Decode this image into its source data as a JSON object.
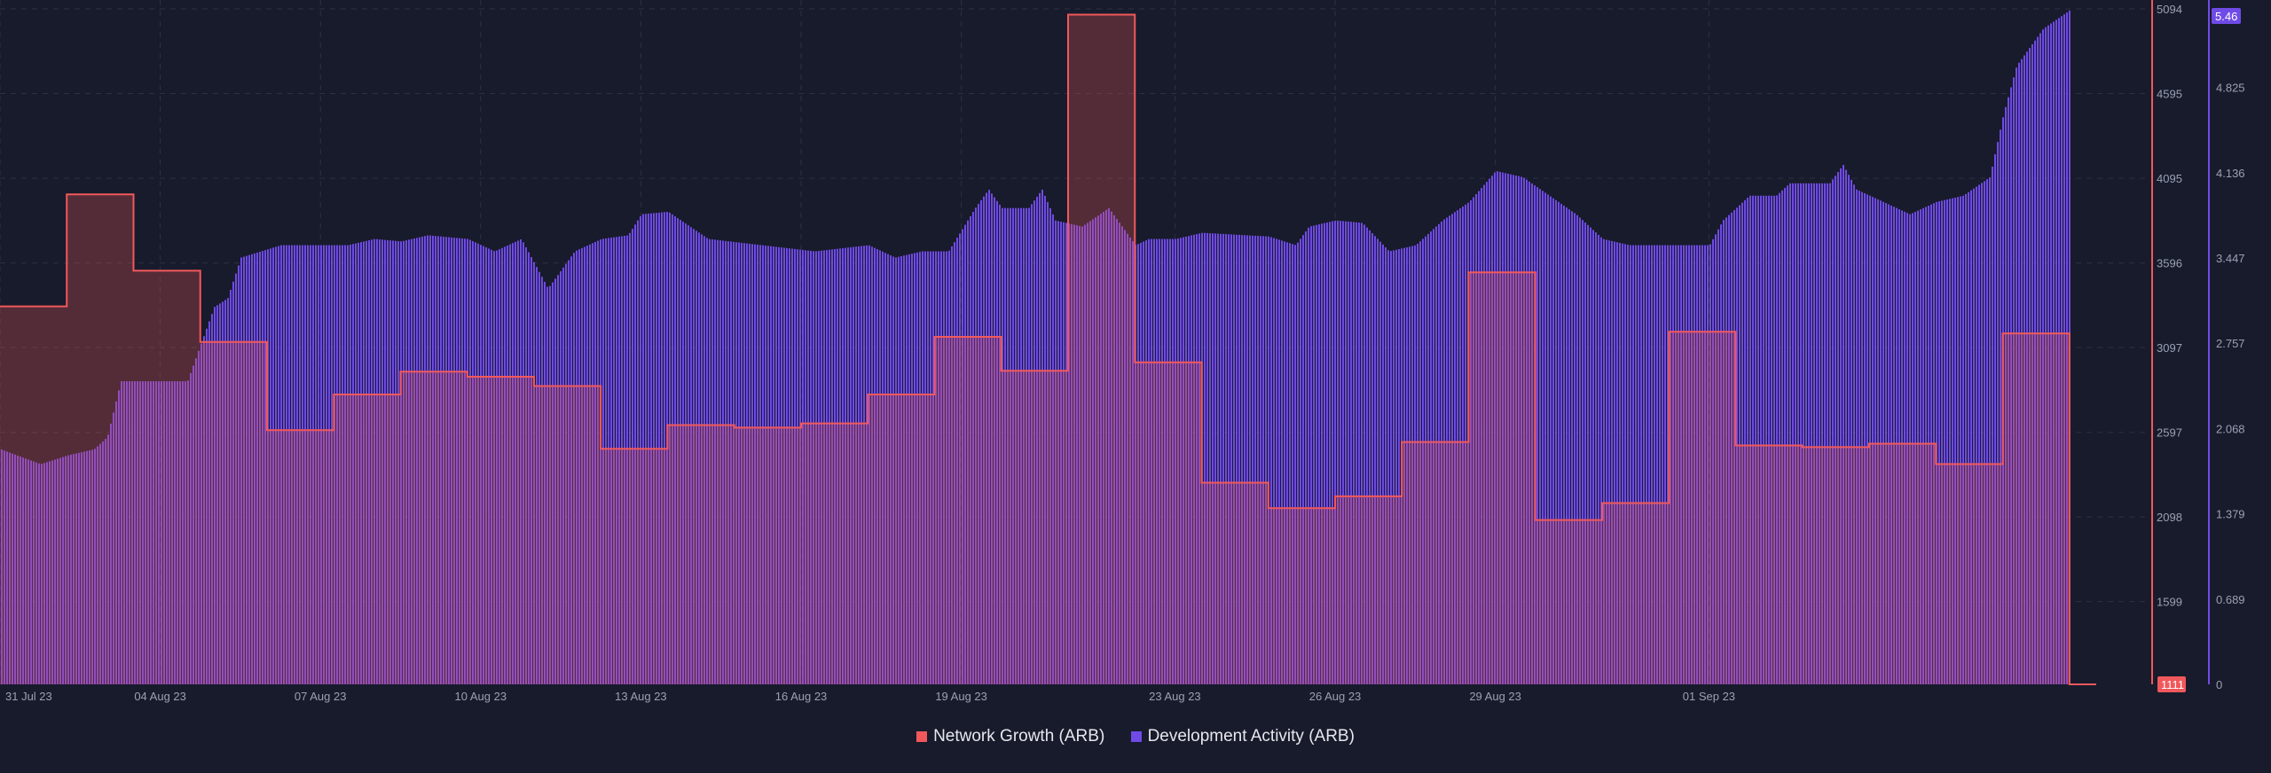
{
  "colors": {
    "background": "#181b2b",
    "grid": "#2c3044",
    "network_growth": "#f1585b",
    "development_activity": "#6f4ae6",
    "axis_text": "#9aa0b4"
  },
  "chart_data": {
    "type": "area",
    "grid": true,
    "x_ticks": [
      "31 Jul 23",
      "04 Aug 23",
      "07 Aug 23",
      "10 Aug 23",
      "13 Aug 23",
      "16 Aug 23",
      "19 Aug 23",
      "23 Aug 23",
      "26 Aug 23",
      "29 Aug 23",
      "01 Sep 23"
    ],
    "y_left": {
      "ticks": [
        "5094",
        "4595",
        "4095",
        "3596",
        "3097",
        "2597",
        "2098",
        "1599"
      ],
      "range": [
        1111,
        5094
      ],
      "current_value": "1111"
    },
    "y_right": {
      "ticks": [
        "4.825",
        "4.136",
        "3.447",
        "2.757",
        "2.068",
        "1.379",
        "0.689",
        "0"
      ],
      "range": [
        0,
        5.46
      ],
      "current_value": "5.46"
    },
    "series": [
      {
        "name": "Network Growth (ARB)",
        "axis": "left",
        "style": "step",
        "segments": [
          {
            "from": "2023-07-31T00:00",
            "to": "2023-08-01T06:00",
            "value": 3340
          },
          {
            "from": "2023-08-01T06:00",
            "to": "2023-08-02T12:00",
            "value": 4000
          },
          {
            "from": "2023-08-02T12:00",
            "to": "2023-08-03T18:00",
            "value": 3550
          },
          {
            "from": "2023-08-03T18:00",
            "to": "2023-08-05T00:00",
            "value": 3130
          },
          {
            "from": "2023-08-05T00:00",
            "to": "2023-08-06T06:00",
            "value": 2610
          },
          {
            "from": "2023-08-06T06:00",
            "to": "2023-08-07T12:00",
            "value": 2820
          },
          {
            "from": "2023-08-07T12:00",
            "to": "2023-08-08T18:00",
            "value": 2955
          },
          {
            "from": "2023-08-08T18:00",
            "to": "2023-08-10T00:00",
            "value": 2925
          },
          {
            "from": "2023-08-10T00:00",
            "to": "2023-08-11T06:00",
            "value": 2870
          },
          {
            "from": "2023-08-11T06:00",
            "to": "2023-08-12T12:00",
            "value": 2500
          },
          {
            "from": "2023-08-12T12:00",
            "to": "2023-08-13T18:00",
            "value": 2640
          },
          {
            "from": "2023-08-13T18:00",
            "to": "2023-08-15T00:00",
            "value": 2625
          },
          {
            "from": "2023-08-15T00:00",
            "to": "2023-08-16T06:00",
            "value": 2650
          },
          {
            "from": "2023-08-16T06:00",
            "to": "2023-08-17T12:00",
            "value": 2820
          },
          {
            "from": "2023-08-17T12:00",
            "to": "2023-08-18T18:00",
            "value": 3160
          },
          {
            "from": "2023-08-18T18:00",
            "to": "2023-08-20T00:00",
            "value": 2960
          },
          {
            "from": "2023-08-20T00:00",
            "to": "2023-08-21T06:00",
            "value": 5060
          },
          {
            "from": "2023-08-21T06:00",
            "to": "2023-08-22T12:00",
            "value": 3010
          },
          {
            "from": "2023-08-22T12:00",
            "to": "2023-08-23T18:00",
            "value": 2300
          },
          {
            "from": "2023-08-23T18:00",
            "to": "2023-08-25T00:00",
            "value": 2150
          },
          {
            "from": "2023-08-25T00:00",
            "to": "2023-08-26T06:00",
            "value": 2220
          },
          {
            "from": "2023-08-26T06:00",
            "to": "2023-08-27T12:00",
            "value": 2540
          },
          {
            "from": "2023-08-27T12:00",
            "to": "2023-08-28T18:00",
            "value": 3540
          },
          {
            "from": "2023-08-28T18:00",
            "to": "2023-08-30T00:00",
            "value": 2080
          },
          {
            "from": "2023-08-30T00:00",
            "to": "2023-08-31T06:00",
            "value": 2180
          },
          {
            "from": "2023-08-31T06:00",
            "to": "2023-09-01T12:00",
            "value": 3190
          },
          {
            "from": "2023-09-01T12:00",
            "to": "2023-09-02T18:00",
            "value": 2520
          },
          {
            "from": "2023-09-02T18:00",
            "to": "2023-09-04T00:00",
            "value": 2510
          },
          {
            "from": "2023-09-04T00:00",
            "to": "2023-09-05T06:00",
            "value": 2530
          },
          {
            "from": "2023-09-05T06:00",
            "to": "2023-09-06T12:00",
            "value": 2410
          },
          {
            "from": "2023-09-06T12:00",
            "to": "2023-09-07T18:00",
            "value": 3180
          },
          {
            "from": "2023-09-07T18:00",
            "to": "2023-09-08T06:00",
            "value": 1111
          }
        ]
      },
      {
        "name": "Development Activity (ARB)",
        "axis": "right",
        "style": "bar",
        "points": [
          [
            "2023-07-31T00:00",
            1.9
          ],
          [
            "2023-07-31T18:00",
            1.78
          ],
          [
            "2023-08-01T06:00",
            1.85
          ],
          [
            "2023-08-01T18:00",
            1.9
          ],
          [
            "2023-08-02T00:00",
            2.0
          ],
          [
            "2023-08-02T06:00",
            2.45
          ],
          [
            "2023-08-02T18:00",
            2.45
          ],
          [
            "2023-08-03T12:00",
            2.45
          ],
          [
            "2023-08-03T18:00",
            2.75
          ],
          [
            "2023-08-04T00:00",
            3.05
          ],
          [
            "2023-08-04T06:00",
            3.12
          ],
          [
            "2023-08-04T12:00",
            3.45
          ],
          [
            "2023-08-05T06:00",
            3.55
          ],
          [
            "2023-08-06T12:00",
            3.55
          ],
          [
            "2023-08-07T00:00",
            3.6
          ],
          [
            "2023-08-07T12:00",
            3.58
          ],
          [
            "2023-08-08T00:00",
            3.63
          ],
          [
            "2023-08-08T18:00",
            3.6
          ],
          [
            "2023-08-09T06:00",
            3.5
          ],
          [
            "2023-08-09T18:00",
            3.6
          ],
          [
            "2023-08-10T06:00",
            3.2
          ],
          [
            "2023-08-10T12:00",
            3.35
          ],
          [
            "2023-08-10T18:00",
            3.5
          ],
          [
            "2023-08-11T06:00",
            3.6
          ],
          [
            "2023-08-11T18:00",
            3.63
          ],
          [
            "2023-08-12T00:00",
            3.8
          ],
          [
            "2023-08-12T12:00",
            3.82
          ],
          [
            "2023-08-13T06:00",
            3.6
          ],
          [
            "2023-08-14T06:00",
            3.55
          ],
          [
            "2023-08-15T06:00",
            3.5
          ],
          [
            "2023-08-16T06:00",
            3.55
          ],
          [
            "2023-08-16T18:00",
            3.45
          ],
          [
            "2023-08-17T06:00",
            3.5
          ],
          [
            "2023-08-17T18:00",
            3.5
          ],
          [
            "2023-08-18T06:00",
            3.85
          ],
          [
            "2023-08-18T12:00",
            4.0
          ],
          [
            "2023-08-18T18:00",
            3.85
          ],
          [
            "2023-08-19T06:00",
            3.85
          ],
          [
            "2023-08-19T12:00",
            4.0
          ],
          [
            "2023-08-19T18:00",
            3.75
          ],
          [
            "2023-08-20T06:00",
            3.7
          ],
          [
            "2023-08-20T18:00",
            3.85
          ],
          [
            "2023-08-21T06:00",
            3.55
          ],
          [
            "2023-08-21T12:00",
            3.6
          ],
          [
            "2023-08-22T00:00",
            3.6
          ],
          [
            "2023-08-22T12:00",
            3.65
          ],
          [
            "2023-08-23T18:00",
            3.62
          ],
          [
            "2023-08-24T06:00",
            3.55
          ],
          [
            "2023-08-24T12:00",
            3.7
          ],
          [
            "2023-08-25T00:00",
            3.75
          ],
          [
            "2023-08-25T12:00",
            3.73
          ],
          [
            "2023-08-26T00:00",
            3.5
          ],
          [
            "2023-08-26T12:00",
            3.55
          ],
          [
            "2023-08-27T00:00",
            3.75
          ],
          [
            "2023-08-27T12:00",
            3.9
          ],
          [
            "2023-08-28T00:00",
            4.15
          ],
          [
            "2023-08-28T12:00",
            4.1
          ],
          [
            "2023-08-29T00:00",
            3.95
          ],
          [
            "2023-08-29T12:00",
            3.8
          ],
          [
            "2023-08-30T00:00",
            3.6
          ],
          [
            "2023-08-30T12:00",
            3.55
          ],
          [
            "2023-08-31T00:00",
            3.55
          ],
          [
            "2023-08-31T12:00",
            3.55
          ],
          [
            "2023-09-01T00:00",
            3.55
          ],
          [
            "2023-09-01T06:00",
            3.75
          ],
          [
            "2023-09-01T18:00",
            3.95
          ],
          [
            "2023-09-02T06:00",
            3.95
          ],
          [
            "2023-09-02T12:00",
            4.05
          ],
          [
            "2023-09-03T06:00",
            4.05
          ],
          [
            "2023-09-03T12:00",
            4.2
          ],
          [
            "2023-09-03T18:00",
            4.0
          ],
          [
            "2023-09-04T06:00",
            3.9
          ],
          [
            "2023-09-04T18:00",
            3.8
          ],
          [
            "2023-09-05T06:00",
            3.9
          ],
          [
            "2023-09-05T18:00",
            3.95
          ],
          [
            "2023-09-06T06:00",
            4.1
          ],
          [
            "2023-09-06T12:00",
            4.6
          ],
          [
            "2023-09-06T18:00",
            5.0
          ],
          [
            "2023-09-07T06:00",
            5.3
          ],
          [
            "2023-09-07T18:00",
            5.45
          ]
        ]
      }
    ]
  }
}
